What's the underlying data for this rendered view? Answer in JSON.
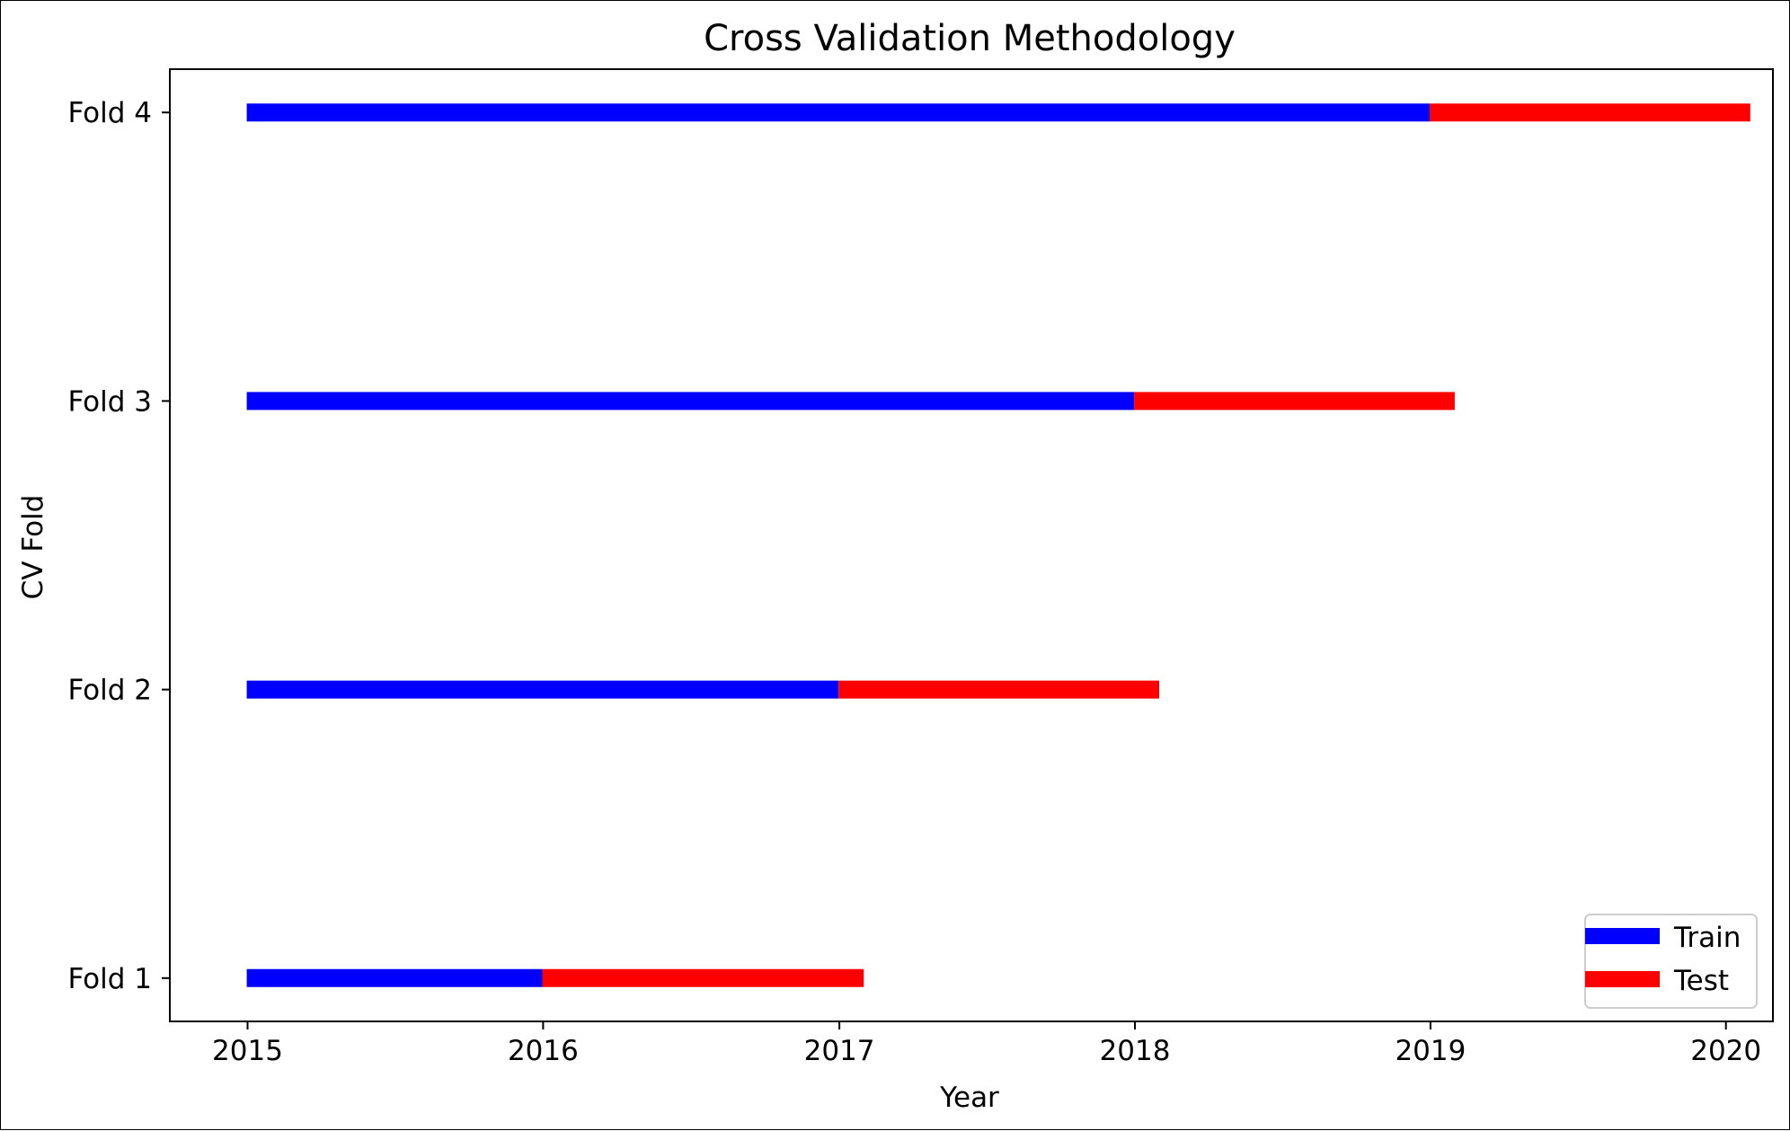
{
  "chart_data": {
    "type": "bar",
    "subtype": "horizontal-timeline",
    "title": "Cross Validation Methodology",
    "xlabel": "Year",
    "ylabel": "CV Fold",
    "xlim": [
      "2014-09-27",
      "2020-02-28"
    ],
    "ylim": [
      0.85,
      4.15
    ],
    "x_ticks": [
      "2015",
      "2016",
      "2017",
      "2018",
      "2019",
      "2020"
    ],
    "categories": [
      "Fold 1",
      "Fold 2",
      "Fold 3",
      "Fold 4"
    ],
    "series": [
      {
        "name": "Train",
        "color": "#0000ff",
        "segments": [
          {
            "fold": "Fold 1",
            "start": "2014-12-31",
            "end": "2015-12-31"
          },
          {
            "fold": "Fold 2",
            "start": "2014-12-31",
            "end": "2016-12-31"
          },
          {
            "fold": "Fold 3",
            "start": "2014-12-31",
            "end": "2017-12-31"
          },
          {
            "fold": "Fold 4",
            "start": "2014-12-31",
            "end": "2018-12-31"
          }
        ]
      },
      {
        "name": "Test",
        "color": "#ff0000",
        "segments": [
          {
            "fold": "Fold 1",
            "start": "2015-12-31",
            "end": "2017-01-31"
          },
          {
            "fold": "Fold 2",
            "start": "2016-12-31",
            "end": "2018-01-31"
          },
          {
            "fold": "Fold 3",
            "start": "2017-12-31",
            "end": "2019-01-31"
          },
          {
            "fold": "Fold 4",
            "start": "2018-12-31",
            "end": "2020-01-31"
          }
        ]
      }
    ],
    "grid": false,
    "legend_position": "bottom-right"
  }
}
